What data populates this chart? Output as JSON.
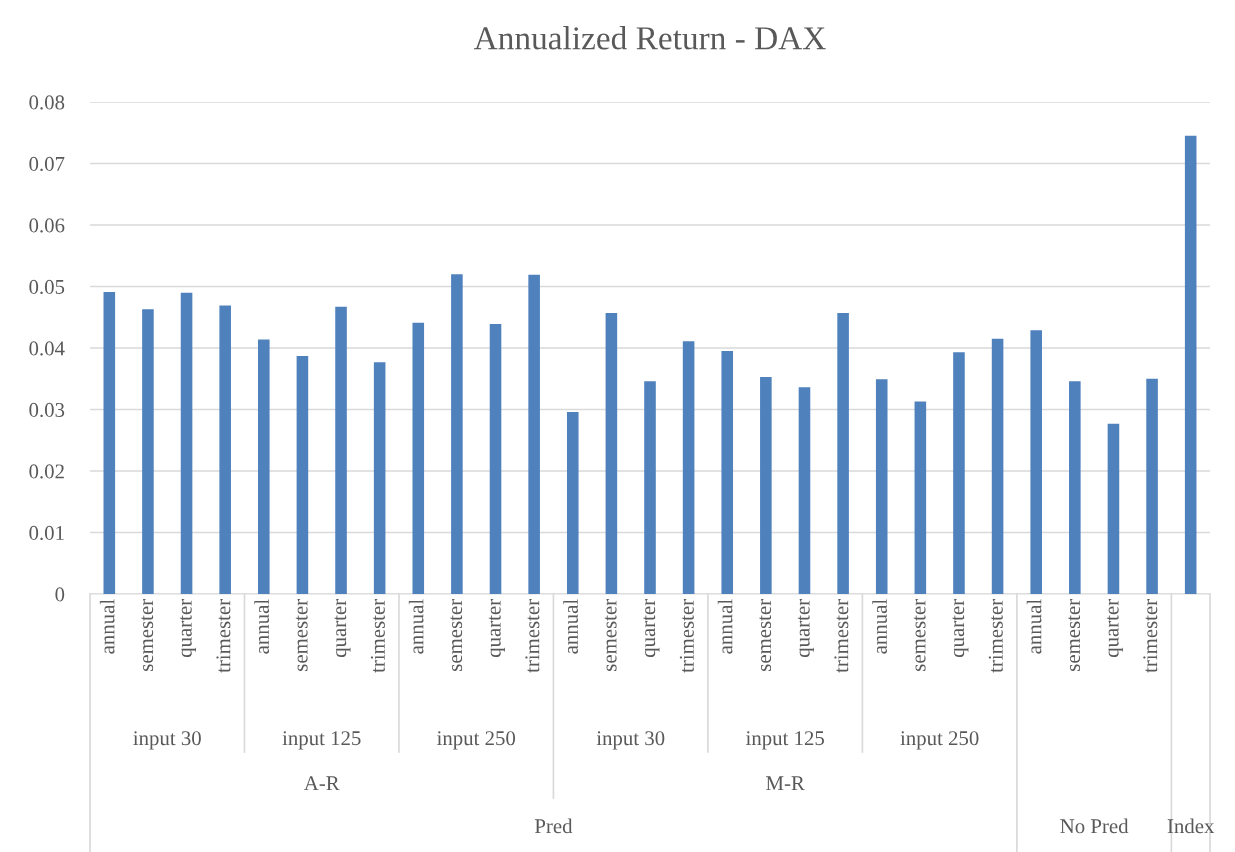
{
  "chart_data": {
    "type": "bar",
    "title": "Annualized Return - DAX",
    "categories": [
      "annual",
      "semester",
      "quarter",
      "trimester",
      "annual",
      "semester",
      "quarter",
      "trimester",
      "annual",
      "semester",
      "quarter",
      "trimester",
      "annual",
      "semester",
      "quarter",
      "trimester",
      "annual",
      "semester",
      "quarter",
      "trimester",
      "annual",
      "semester",
      "quarter",
      "trimester",
      "annual",
      "semester",
      "quarter",
      "trimester",
      null
    ],
    "values": [
      0.0491,
      0.0463,
      0.049,
      0.0469,
      0.0414,
      0.0387,
      0.0467,
      0.0377,
      0.0441,
      0.052,
      0.0439,
      0.0519,
      0.0296,
      0.0457,
      0.0346,
      0.0411,
      0.0395,
      0.0353,
      0.0336,
      0.0457,
      0.0349,
      0.0313,
      0.0393,
      0.0415,
      0.0429,
      0.0346,
      0.0277,
      0.035,
      0.0745
    ],
    "color": "#4f81bd",
    "ylim": [
      0,
      0.08
    ],
    "yticks": [
      {
        "value": 0,
        "label": "0"
      },
      0.01,
      0.02,
      0.03,
      0.04,
      0.05,
      0.06,
      0.07,
      0.08
    ],
    "grid": "y",
    "legend": false,
    "annotations": [
      "input 30",
      "input 125",
      "input 250",
      "input 30",
      "input 125",
      "input 250",
      "A-R",
      "M-R",
      "Pred",
      "No Pred",
      "Index"
    ]
  }
}
